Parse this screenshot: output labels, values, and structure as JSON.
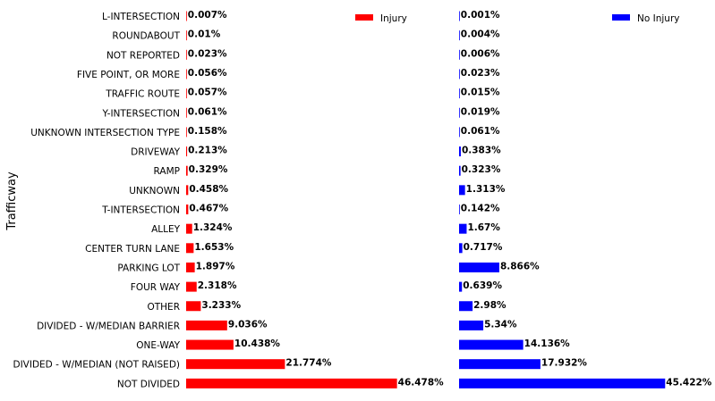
{
  "chart_data": {
    "type": "bar",
    "orientation": "horizontal",
    "ylabel": "Trafficway",
    "categories": [
      "L-INTERSECTION",
      "ROUNDABOUT",
      "NOT REPORTED",
      "FIVE POINT, OR MORE",
      "TRAFFIC ROUTE",
      "Y-INTERSECTION",
      "UNKNOWN INTERSECTION TYPE",
      "DRIVEWAY",
      "RAMP",
      "UNKNOWN",
      "T-INTERSECTION",
      "ALLEY",
      "CENTER TURN LANE",
      "PARKING LOT",
      "FOUR WAY",
      "OTHER",
      "DIVIDED - W/MEDIAN BARRIER",
      "ONE-WAY",
      "DIVIDED - W/MEDIAN (NOT RAISED)",
      "NOT DIVIDED"
    ],
    "series": [
      {
        "name": "Injury",
        "color": "#ff0000",
        "values": [
          0.007,
          0.01,
          0.023,
          0.056,
          0.057,
          0.061,
          0.158,
          0.213,
          0.329,
          0.458,
          0.467,
          1.324,
          1.653,
          1.897,
          2.318,
          3.233,
          9.036,
          10.438,
          21.774,
          46.478
        ],
        "labels": [
          "0.007%",
          "0.01%",
          "0.023%",
          "0.056%",
          "0.057%",
          "0.061%",
          "0.158%",
          "0.213%",
          "0.329%",
          "0.458%",
          "0.467%",
          "1.324%",
          "1.653%",
          "1.897%",
          "2.318%",
          "3.233%",
          "9.036%",
          "10.438%",
          "21.774%",
          "46.478%"
        ]
      },
      {
        "name": "No Injury",
        "color": "#0000ff",
        "values": [
          0.001,
          0.004,
          0.006,
          0.023,
          0.015,
          0.019,
          0.061,
          0.383,
          0.323,
          1.313,
          0.142,
          1.67,
          0.717,
          8.866,
          0.639,
          2.98,
          5.34,
          14.136,
          17.932,
          45.422
        ],
        "labels": [
          "0.001%",
          "0.004%",
          "0.006%",
          "0.023%",
          "0.015%",
          "0.019%",
          "0.061%",
          "0.383%",
          "0.323%",
          "1.313%",
          "0.142%",
          "1.67%",
          "0.717%",
          "8.866%",
          "0.639%",
          "2.98%",
          "5.34%",
          "14.136%",
          "17.932%",
          "45.422%"
        ]
      }
    ],
    "legend_position": "top-right",
    "grid": false,
    "axes_visible": false
  }
}
